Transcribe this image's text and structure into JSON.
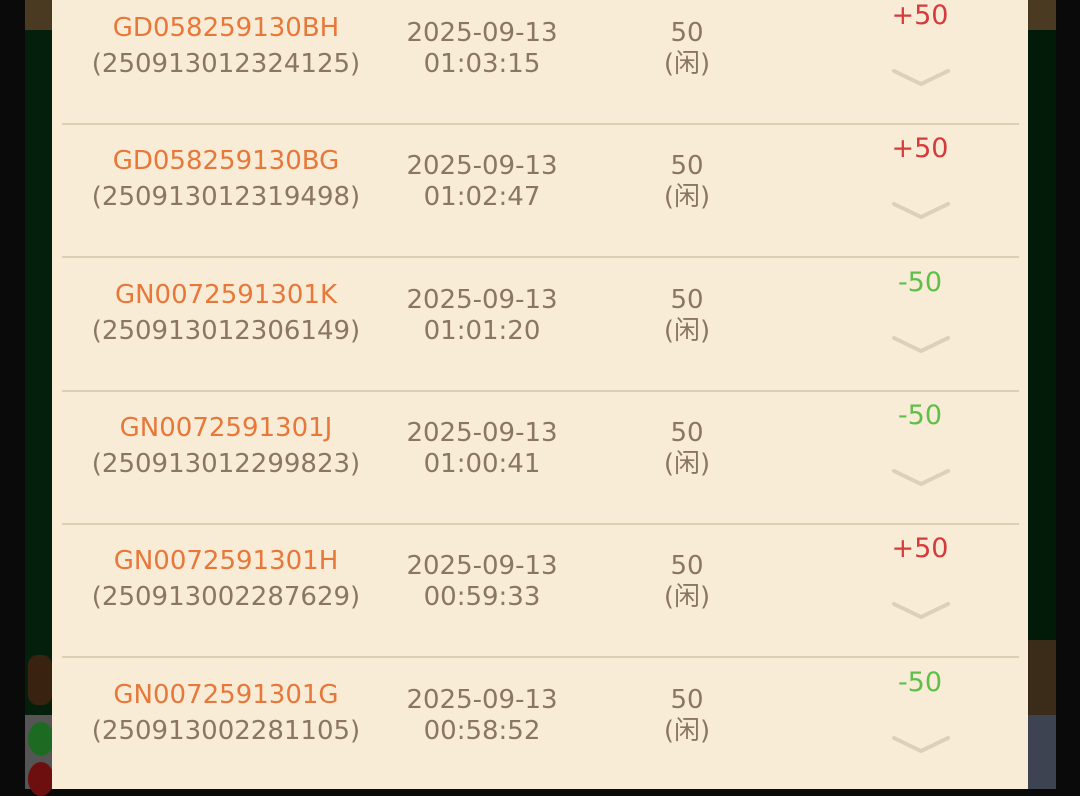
{
  "records": [
    {
      "order_id": "GD058259130BH",
      "round_id": "(250913012324125)",
      "date": "2025-09-13",
      "time": "01:03:15",
      "amount": "50",
      "bet_side": "(闲)",
      "result": "+50",
      "result_type": "win"
    },
    {
      "order_id": "GD058259130BG",
      "round_id": "(250913012319498)",
      "date": "2025-09-13",
      "time": "01:02:47",
      "amount": "50",
      "bet_side": "(闲)",
      "result": "+50",
      "result_type": "win"
    },
    {
      "order_id": "GN0072591301K",
      "round_id": "(250913012306149)",
      "date": "2025-09-13",
      "time": "01:01:20",
      "amount": "50",
      "bet_side": "(闲)",
      "result": "-50",
      "result_type": "loss"
    },
    {
      "order_id": "GN0072591301J",
      "round_id": "(250913012299823)",
      "date": "2025-09-13",
      "time": "01:00:41",
      "amount": "50",
      "bet_side": "(闲)",
      "result": "-50",
      "result_type": "loss"
    },
    {
      "order_id": "GN0072591301H",
      "round_id": "(250913002287629)",
      "date": "2025-09-13",
      "time": "00:59:33",
      "amount": "50",
      "bet_side": "(闲)",
      "result": "+50",
      "result_type": "win"
    },
    {
      "order_id": "GN0072591301G",
      "round_id": "(250913002281105)",
      "date": "2025-09-13",
      "time": "00:58:52",
      "amount": "50",
      "bet_side": "(闲)",
      "result": "-50",
      "result_type": "loss"
    }
  ],
  "colors": {
    "win": "#d63a3a",
    "loss": "#5ec04a",
    "order_id": "#e8773a",
    "text": "#8b7660",
    "panel": "#f8ecd6"
  },
  "icons": {
    "expand": "chevron-down-icon"
  }
}
